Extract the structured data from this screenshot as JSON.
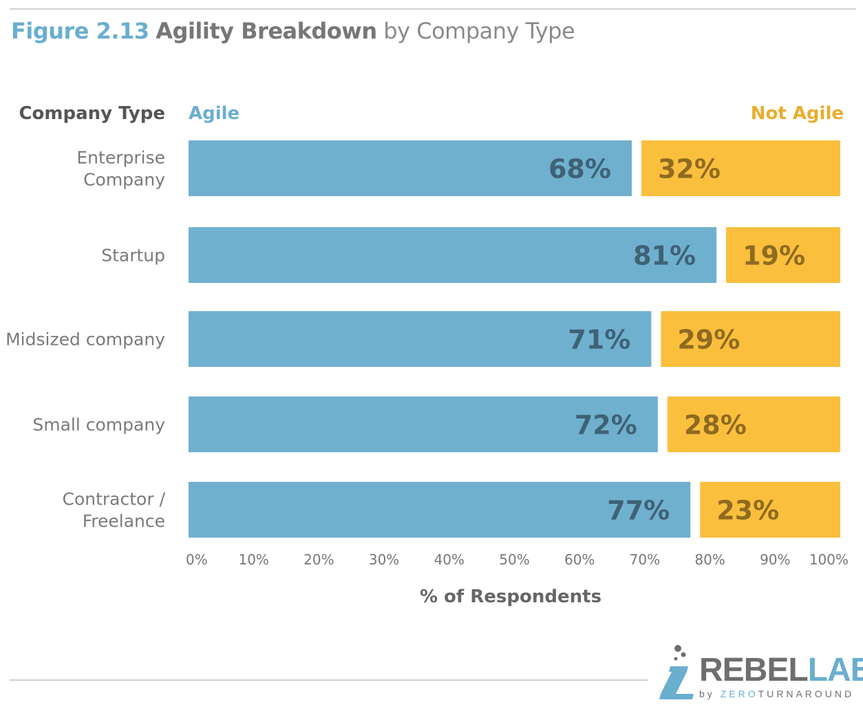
{
  "figure": {
    "number": "Figure 2.13",
    "title_main": "Agility Breakdown",
    "title_sub": "by Company Type"
  },
  "headers": {
    "category": "Company Type",
    "agile": "Agile",
    "not_agile": "Not Agile"
  },
  "colors": {
    "agile": "#70b0cf",
    "not_agile": "#fbbf3e",
    "agile_label": "#3e6275",
    "not_agile_label": "#8f6a20"
  },
  "chart_data": {
    "type": "bar",
    "orientation": "horizontal",
    "stacked": true,
    "categories": [
      [
        "Enterprise",
        "Company"
      ],
      [
        "Startup"
      ],
      [
        "Midsized company"
      ],
      [
        "Small company"
      ],
      [
        "Contractor /",
        "Freelance"
      ]
    ],
    "series": [
      {
        "name": "Agile",
        "values": [
          68,
          81,
          71,
          72,
          77
        ],
        "labels": [
          "68%",
          "81%",
          "71%",
          "72%",
          "77%"
        ]
      },
      {
        "name": "Not Agile",
        "values": [
          32,
          19,
          29,
          28,
          23
        ],
        "labels": [
          "32%",
          "19%",
          "29%",
          "28%",
          "23%"
        ]
      }
    ],
    "xlim": [
      0,
      100
    ],
    "xticks": [
      "0%",
      "10%",
      "20%",
      "30%",
      "40%",
      "50%",
      "60%",
      "70%",
      "80%",
      "90%",
      "100%"
    ],
    "xlabel": "% of Respondents",
    "ylabel": "Company Type",
    "grid": false
  },
  "logo": {
    "brand_first": "REBEL",
    "brand_second": "LABS",
    "by": "by",
    "company_first": "ZERO",
    "company_second": "TURNAROUND"
  }
}
